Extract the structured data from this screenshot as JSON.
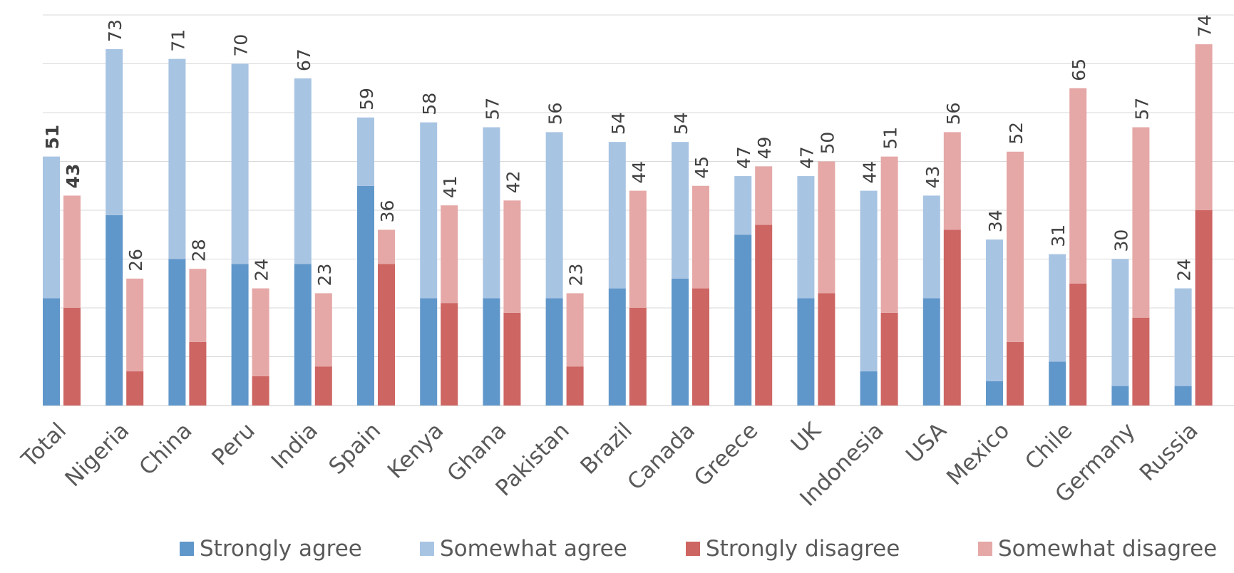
{
  "chart_data": {
    "type": "bar",
    "categories": [
      "Total",
      "Nigeria",
      "China",
      "Peru",
      "India",
      "Spain",
      "Kenya",
      "Ghana",
      "Pakistan",
      "Brazil",
      "Canada",
      "Greece",
      "UK",
      "Indonesia",
      "USA",
      "Mexico",
      "Chile",
      "Germany",
      "Russia"
    ],
    "agree_totals": [
      51,
      73,
      71,
      70,
      67,
      59,
      58,
      57,
      56,
      54,
      54,
      47,
      47,
      44,
      43,
      34,
      31,
      30,
      24
    ],
    "disagree_totals": [
      43,
      26,
      28,
      24,
      23,
      36,
      41,
      42,
      23,
      44,
      45,
      49,
      50,
      51,
      56,
      52,
      65,
      57,
      74
    ],
    "series": [
      {
        "name": "Strongly agree",
        "stack": "agree",
        "color": "#6097ca",
        "values": [
          22,
          39,
          30,
          29,
          29,
          45,
          22,
          22,
          22,
          24,
          26,
          35,
          22,
          7,
          22,
          5,
          9,
          4,
          4
        ]
      },
      {
        "name": "Somewhat agree",
        "stack": "agree",
        "color": "#a8c4e3",
        "values": [
          29,
          34,
          41,
          41,
          38,
          14,
          36,
          35,
          34,
          30,
          28,
          12,
          25,
          37,
          21,
          29,
          22,
          26,
          20
        ]
      },
      {
        "name": "Strongly disagree",
        "stack": "disagree",
        "color": "#cd6562",
        "values": [
          20,
          7,
          13,
          6,
          8,
          29,
          21,
          19,
          8,
          20,
          24,
          37,
          23,
          19,
          36,
          13,
          25,
          18,
          40
        ]
      },
      {
        "name": "Somewhat disagree",
        "stack": "disagree",
        "color": "#e5a8a7",
        "values": [
          23,
          19,
          15,
          18,
          15,
          7,
          20,
          23,
          15,
          24,
          21,
          12,
          27,
          32,
          20,
          39,
          40,
          39,
          34
        ]
      }
    ],
    "bold_labels_category": "Total",
    "ylim": [
      0,
      80
    ],
    "grid": true,
    "legend_position": "bottom",
    "title": "",
    "xlabel": "",
    "ylabel": ""
  }
}
